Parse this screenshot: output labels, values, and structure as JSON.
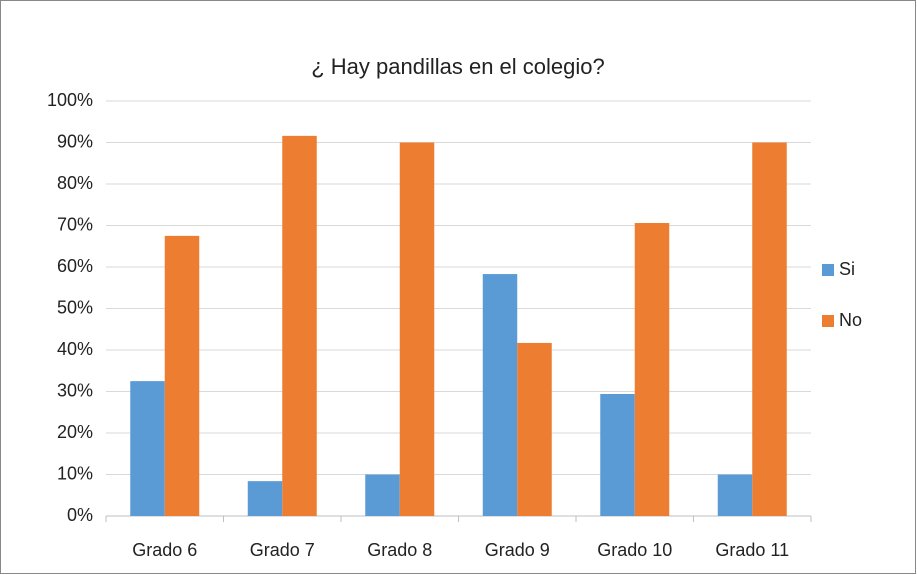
{
  "chart_data": {
    "type": "bar",
    "title": "¿ Hay pandillas en el colegio?",
    "categories": [
      "Grado 6",
      "Grado 7",
      "Grado 8",
      "Grado 9",
      "Grado 10",
      "Grado 11"
    ],
    "series": [
      {
        "name": "Si",
        "color": "#5b9bd5",
        "values": [
          32.5,
          8.4,
          10,
          58.3,
          29.4,
          10
        ]
      },
      {
        "name": "No",
        "color": "#ed7d31",
        "values": [
          67.5,
          91.6,
          90,
          41.7,
          70.6,
          90
        ]
      }
    ],
    "ylim": [
      0,
      100
    ],
    "yticks": [
      {
        "value": 0,
        "label": "0%"
      },
      {
        "value": 10,
        "label": "10%"
      },
      {
        "value": 20,
        "label": "20%"
      },
      {
        "value": 30,
        "label": "30%"
      },
      {
        "value": 40,
        "label": "40%"
      },
      {
        "value": 50,
        "label": "50%"
      },
      {
        "value": 60,
        "label": "60%"
      },
      {
        "value": 70,
        "label": "70%"
      },
      {
        "value": 80,
        "label": "80%"
      },
      {
        "value": 90,
        "label": "90%"
      },
      {
        "value": 100,
        "label": "100%"
      }
    ],
    "grid": true,
    "legend": "right"
  }
}
